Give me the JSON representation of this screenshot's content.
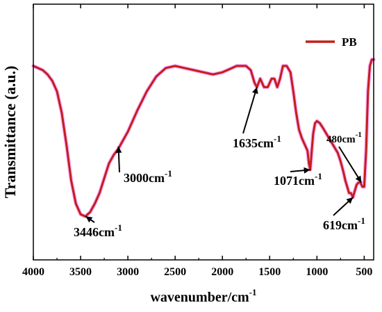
{
  "chart_data": {
    "type": "line",
    "title": "",
    "xlabel": "wavenumber/cm",
    "xlabel_sup": "-1",
    "ylabel": "Transmittance (a.u.)",
    "x_axis_reversed": true,
    "xlim": [
      4000,
      400
    ],
    "ylim": [
      0,
      1
    ],
    "y_tick_labels_shown": false,
    "x_ticks": [
      4000,
      3500,
      3000,
      2500,
      2000,
      1500,
      1000,
      500
    ],
    "x_tick_labels": [
      "4000",
      "3500",
      "3000",
      "2500",
      "2000",
      "1500",
      "1000",
      "500"
    ],
    "grid": false,
    "legend": {
      "position": "top-right",
      "entries": [
        {
          "name": "PB",
          "color": "#c0201a"
        }
      ]
    },
    "series": [
      {
        "name": "PB",
        "color": "#c0201a",
        "halo_color": "#ff66ff",
        "x": [
          4000,
          3900,
          3850,
          3800,
          3750,
          3700,
          3650,
          3600,
          3550,
          3500,
          3450,
          3400,
          3350,
          3300,
          3250,
          3200,
          3150,
          3100,
          3050,
          3000,
          2900,
          2800,
          2700,
          2600,
          2500,
          2400,
          2300,
          2200,
          2100,
          2000,
          1900,
          1850,
          1800,
          1750,
          1700,
          1660,
          1635,
          1600,
          1560,
          1520,
          1480,
          1450,
          1420,
          1390,
          1360,
          1320,
          1280,
          1250,
          1220,
          1190,
          1160,
          1130,
          1100,
          1085,
          1071,
          1055,
          1040,
          1020,
          1000,
          970,
          940,
          900,
          860,
          820,
          780,
          750,
          720,
          700,
          680,
          660,
          640,
          619,
          600,
          580,
          560,
          540,
          520,
          500,
          480,
          460,
          440,
          420,
          400
        ],
        "y": [
          0.82,
          0.8,
          0.78,
          0.75,
          0.7,
          0.6,
          0.45,
          0.28,
          0.17,
          0.12,
          0.11,
          0.13,
          0.17,
          0.22,
          0.29,
          0.36,
          0.4,
          0.43,
          0.47,
          0.51,
          0.61,
          0.7,
          0.77,
          0.81,
          0.82,
          0.81,
          0.8,
          0.79,
          0.78,
          0.79,
          0.81,
          0.82,
          0.82,
          0.82,
          0.8,
          0.74,
          0.72,
          0.76,
          0.72,
          0.72,
          0.76,
          0.76,
          0.72,
          0.76,
          0.82,
          0.82,
          0.79,
          0.7,
          0.6,
          0.52,
          0.48,
          0.45,
          0.42,
          0.36,
          0.33,
          0.42,
          0.5,
          0.55,
          0.56,
          0.55,
          0.53,
          0.5,
          0.47,
          0.44,
          0.41,
          0.37,
          0.32,
          0.28,
          0.25,
          0.22,
          0.22,
          0.2,
          0.23,
          0.26,
          0.27,
          0.27,
          0.25,
          0.25,
          0.42,
          0.7,
          0.82,
          0.85,
          0.85
        ]
      }
    ],
    "annotations": [
      {
        "text": "3446cm",
        "sup": "-1",
        "x": 3446,
        "y": 0.11
      },
      {
        "text": "3000cm",
        "sup": "-1",
        "x": 3100,
        "y": 0.44
      },
      {
        "text": "1635cm",
        "sup": "-1",
        "x": 1635,
        "y": 0.72
      },
      {
        "text": "1071cm",
        "sup": "-1",
        "x": 1071,
        "y": 0.33
      },
      {
        "text": "480cm",
        "sup": "-1",
        "x": 530,
        "y": 0.27
      },
      {
        "text": "619cm",
        "sup": "-1",
        "x": 619,
        "y": 0.2
      }
    ]
  }
}
